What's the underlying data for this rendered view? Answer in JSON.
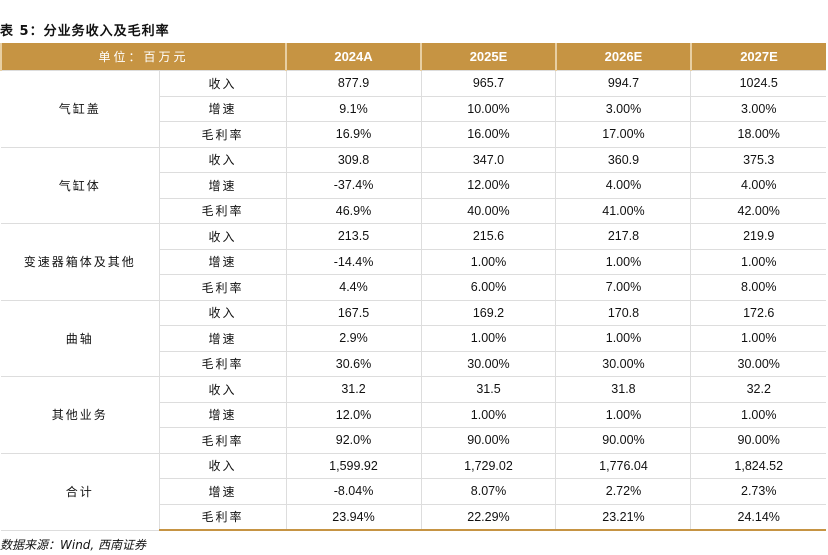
{
  "title": "表 5：分业务收入及毛利率",
  "header": {
    "unit": "单位：百万元",
    "years": [
      "2024A",
      "2025E",
      "2026E",
      "2027E"
    ]
  },
  "segments": [
    {
      "name": "气缸盖",
      "rows": [
        [
          "收入",
          "877.9",
          "965.7",
          "994.7",
          "1024.5"
        ],
        [
          "增速",
          "9.1%",
          "10.00%",
          "3.00%",
          "3.00%"
        ],
        [
          "毛利率",
          "16.9%",
          "16.00%",
          "17.00%",
          "18.00%"
        ]
      ]
    },
    {
      "name": "气缸体",
      "rows": [
        [
          "收入",
          "309.8",
          "347.0",
          "360.9",
          "375.3"
        ],
        [
          "增速",
          "-37.4%",
          "12.00%",
          "4.00%",
          "4.00%"
        ],
        [
          "毛利率",
          "46.9%",
          "40.00%",
          "41.00%",
          "42.00%"
        ]
      ]
    },
    {
      "name": "变速器箱体及其他",
      "rows": [
        [
          "收入",
          "213.5",
          "215.6",
          "217.8",
          "219.9"
        ],
        [
          "增速",
          "-14.4%",
          "1.00%",
          "1.00%",
          "1.00%"
        ],
        [
          "毛利率",
          "4.4%",
          "6.00%",
          "7.00%",
          "8.00%"
        ]
      ]
    },
    {
      "name": "曲轴",
      "rows": [
        [
          "收入",
          "167.5",
          "169.2",
          "170.8",
          "172.6"
        ],
        [
          "增速",
          "2.9%",
          "1.00%",
          "1.00%",
          "1.00%"
        ],
        [
          "毛利率",
          "30.6%",
          "30.00%",
          "30.00%",
          "30.00%"
        ]
      ]
    },
    {
      "name": "其他业务",
      "rows": [
        [
          "收入",
          "31.2",
          "31.5",
          "31.8",
          "32.2"
        ],
        [
          "增速",
          "12.0%",
          "1.00%",
          "1.00%",
          "1.00%"
        ],
        [
          "毛利率",
          "92.0%",
          "90.00%",
          "90.00%",
          "90.00%"
        ]
      ]
    },
    {
      "name": "合计",
      "rows": [
        [
          "收入",
          "1,599.92",
          "1,729.02",
          "1,776.04",
          "1,824.52"
        ],
        [
          "增速",
          "-8.04%",
          "8.07%",
          "2.72%",
          "2.73%"
        ],
        [
          "毛利率",
          "23.94%",
          "22.29%",
          "23.21%",
          "24.14%"
        ]
      ]
    }
  ],
  "source": "数据来源：Wind, 西南证券"
}
